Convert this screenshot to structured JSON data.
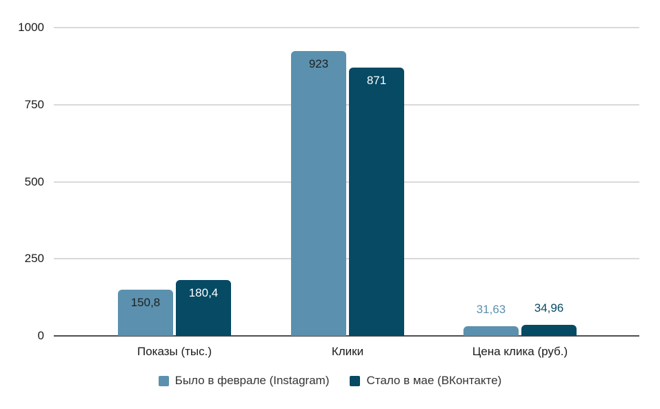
{
  "page": {
    "background": "#ffffff"
  },
  "chart_data": {
    "type": "bar",
    "title": "",
    "xlabel": "",
    "ylabel": "",
    "categories": [
      "Показы (тыс.)",
      "Клики",
      "Цена клика (руб.)"
    ],
    "series": [
      {
        "name": "Было в феврале (Instagram)",
        "color": "#5b91ae",
        "values": [
          150.8,
          923,
          31.63
        ],
        "value_labels": [
          "150,8",
          "923",
          "31,63"
        ],
        "inside_label_color": "#1f1f1f"
      },
      {
        "name": "Стало в мае (ВКонтакте)",
        "color": "#064a64",
        "values": [
          180.4,
          871,
          34.96
        ],
        "value_labels": [
          "180,4",
          "871",
          "34,96"
        ],
        "inside_label_color": "#ffffff"
      }
    ],
    "ylim": [
      0,
      1000
    ],
    "yticks": [
      0,
      250,
      500,
      750,
      1000
    ],
    "ytick_labels": [
      "0",
      "250",
      "500",
      "750",
      "1000"
    ],
    "grid": true,
    "legend_position": "bottom",
    "grid_color": "#d9d9d9",
    "axis_color": "#4d4d4d",
    "tick_label_color": "#1a1a1a",
    "category_label_color": "#1a1a1a",
    "legend_text_color": "#333333"
  }
}
